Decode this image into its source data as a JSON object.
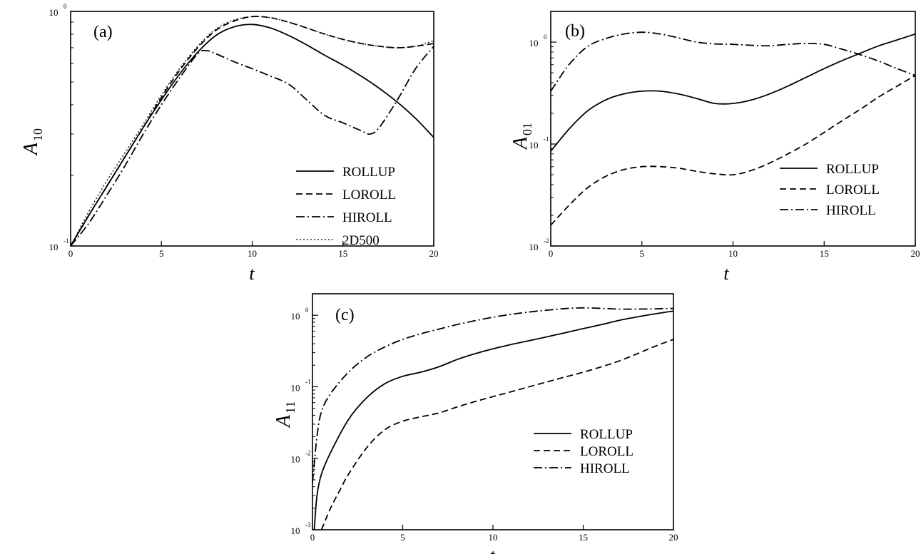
{
  "chart_data": [
    {
      "id": "a",
      "type": "line",
      "panel_label": "(a)",
      "xlabel": "t",
      "ylabel": "A",
      "ylabel_sub": "10",
      "xlim": [
        0,
        20
      ],
      "ylim": [
        0.1,
        1
      ],
      "yscale": "log",
      "xticks": [
        "0",
        "5",
        "10",
        "15",
        "20"
      ],
      "yticks": [
        {
          "base": "10",
          "exp": "-1"
        },
        {
          "base": "10",
          "exp": "0"
        }
      ],
      "legend_position": "bottom-right",
      "series": [
        {
          "name": "ROLLUP",
          "style": "solid",
          "x": [
            0,
            1,
            2,
            3,
            4,
            5,
            6,
            7,
            8,
            9,
            10,
            11,
            12,
            13,
            14,
            15,
            16,
            17,
            18,
            19,
            20
          ],
          "y": [
            0.1,
            0.135,
            0.18,
            0.24,
            0.32,
            0.42,
            0.54,
            0.67,
            0.79,
            0.86,
            0.88,
            0.85,
            0.79,
            0.72,
            0.65,
            0.59,
            0.53,
            0.47,
            0.41,
            0.35,
            0.29
          ]
        },
        {
          "name": "LOROLL",
          "style": "dashed",
          "x": [
            0,
            1,
            2,
            3,
            4,
            5,
            6,
            7,
            8,
            9,
            10,
            11,
            12,
            13,
            14,
            15,
            16,
            17,
            18,
            19,
            20
          ],
          "y": [
            0.1,
            0.135,
            0.18,
            0.24,
            0.32,
            0.43,
            0.56,
            0.7,
            0.83,
            0.91,
            0.95,
            0.94,
            0.9,
            0.85,
            0.8,
            0.76,
            0.73,
            0.71,
            0.7,
            0.71,
            0.73
          ]
        },
        {
          "name": "HIROLL",
          "style": "dashdot",
          "x": [
            0,
            1,
            2,
            3,
            4,
            5,
            6,
            7,
            7.5,
            8,
            9,
            10,
            11,
            12,
            13,
            14,
            15,
            16,
            16.5,
            17,
            18,
            19,
            20
          ],
          "y": [
            0.1,
            0.125,
            0.165,
            0.22,
            0.3,
            0.4,
            0.52,
            0.66,
            0.68,
            0.66,
            0.61,
            0.57,
            0.53,
            0.49,
            0.42,
            0.36,
            0.335,
            0.31,
            0.3,
            0.32,
            0.42,
            0.57,
            0.71
          ]
        },
        {
          "name": "2D500",
          "style": "dotted",
          "x": [
            0,
            1,
            2,
            3,
            4,
            5,
            6,
            7,
            8,
            9,
            10,
            11,
            12,
            13,
            14,
            15,
            16,
            17,
            18,
            19,
            20
          ],
          "y": [
            0.1,
            0.14,
            0.19,
            0.25,
            0.33,
            0.44,
            0.57,
            0.71,
            0.84,
            0.92,
            0.95,
            0.94,
            0.9,
            0.85,
            0.8,
            0.76,
            0.73,
            0.71,
            0.7,
            0.71,
            0.75
          ]
        }
      ]
    },
    {
      "id": "b",
      "type": "line",
      "panel_label": "(b)",
      "xlabel": "t",
      "ylabel": "A",
      "ylabel_sub": "01",
      "xlim": [
        0,
        20
      ],
      "ylim": [
        0.01,
        2
      ],
      "yscale": "log",
      "xticks": [
        "0",
        "5",
        "10",
        "15",
        "20"
      ],
      "yticks": [
        {
          "base": "10",
          "exp": "-2"
        },
        {
          "base": "10",
          "exp": "-1"
        },
        {
          "base": "10",
          "exp": "0"
        }
      ],
      "legend_position": "bottom-right",
      "series": [
        {
          "name": "ROLLUP",
          "style": "solid",
          "x": [
            0,
            1,
            2,
            3,
            4,
            5,
            6,
            7,
            8,
            9,
            10,
            11,
            12,
            13,
            14,
            15,
            16,
            17,
            18,
            19,
            20
          ],
          "y": [
            0.085,
            0.14,
            0.21,
            0.27,
            0.31,
            0.33,
            0.33,
            0.31,
            0.28,
            0.25,
            0.25,
            0.27,
            0.31,
            0.37,
            0.45,
            0.55,
            0.66,
            0.78,
            0.92,
            1.05,
            1.2
          ]
        },
        {
          "name": "LOROLL",
          "style": "dashed",
          "x": [
            0,
            1,
            2,
            3,
            4,
            5,
            6,
            7,
            8,
            9,
            10,
            11,
            12,
            13,
            14,
            15,
            16,
            17,
            18,
            19,
            20
          ],
          "y": [
            0.016,
            0.025,
            0.037,
            0.048,
            0.056,
            0.06,
            0.06,
            0.058,
            0.054,
            0.051,
            0.05,
            0.055,
            0.065,
            0.08,
            0.1,
            0.13,
            0.17,
            0.22,
            0.29,
            0.37,
            0.47
          ]
        },
        {
          "name": "HIROLL",
          "style": "dashdot",
          "x": [
            0,
            1,
            2,
            3,
            4,
            5,
            6,
            7,
            8,
            9,
            10,
            11,
            12,
            13,
            14,
            15,
            16,
            17,
            18,
            19,
            20
          ],
          "y": [
            0.33,
            0.6,
            0.9,
            1.08,
            1.2,
            1.25,
            1.2,
            1.1,
            1.0,
            0.96,
            0.95,
            0.93,
            0.92,
            0.95,
            0.97,
            0.95,
            0.85,
            0.75,
            0.65,
            0.55,
            0.47
          ]
        }
      ]
    },
    {
      "id": "c",
      "type": "line",
      "panel_label": "(c)",
      "xlabel": "t",
      "ylabel": "A",
      "ylabel_sub": "11",
      "xlim": [
        0,
        20
      ],
      "ylim": [
        0.001,
        2
      ],
      "yscale": "log",
      "xticks": [
        "0",
        "5",
        "10",
        "15",
        "20"
      ],
      "yticks": [
        {
          "base": "10",
          "exp": "-3"
        },
        {
          "base": "10",
          "exp": "-2"
        },
        {
          "base": "10",
          "exp": "-1"
        },
        {
          "base": "10",
          "exp": "0"
        }
      ],
      "legend_position": "bottom-right",
      "series": [
        {
          "name": "ROLLUP",
          "style": "solid",
          "x": [
            0.1,
            0.25,
            0.5,
            1,
            2,
            3,
            4,
            5,
            6,
            7,
            8,
            9,
            10,
            11,
            12,
            13,
            14,
            15,
            16,
            17,
            18,
            19,
            20
          ],
          "y": [
            0.001,
            0.003,
            0.006,
            0.012,
            0.035,
            0.07,
            0.11,
            0.14,
            0.16,
            0.19,
            0.24,
            0.29,
            0.34,
            0.39,
            0.44,
            0.5,
            0.57,
            0.65,
            0.74,
            0.85,
            0.95,
            1.05,
            1.15
          ]
        },
        {
          "name": "LOROLL",
          "style": "dashed",
          "x": [
            0.5,
            1,
            1.5,
            2,
            3,
            4,
            5,
            6,
            7,
            8,
            9,
            10,
            11,
            12,
            13,
            14,
            15,
            16,
            17,
            18,
            19,
            20
          ],
          "y": [
            0.001,
            0.002,
            0.0035,
            0.006,
            0.014,
            0.025,
            0.033,
            0.038,
            0.043,
            0.052,
            0.062,
            0.073,
            0.085,
            0.1,
            0.117,
            0.137,
            0.16,
            0.19,
            0.23,
            0.29,
            0.37,
            0.46
          ]
        },
        {
          "name": "HIROLL",
          "style": "dashdot",
          "x": [
            0,
            0.25,
            0.5,
            1,
            2,
            3,
            4,
            5,
            6,
            7,
            8,
            9,
            10,
            11,
            12,
            13,
            14,
            15,
            16,
            17,
            18,
            19,
            20
          ],
          "y": [
            0.0045,
            0.02,
            0.045,
            0.08,
            0.16,
            0.26,
            0.36,
            0.46,
            0.55,
            0.64,
            0.74,
            0.84,
            0.94,
            1.03,
            1.11,
            1.18,
            1.24,
            1.27,
            1.25,
            1.22,
            1.22,
            1.23,
            1.25
          ]
        }
      ]
    }
  ]
}
